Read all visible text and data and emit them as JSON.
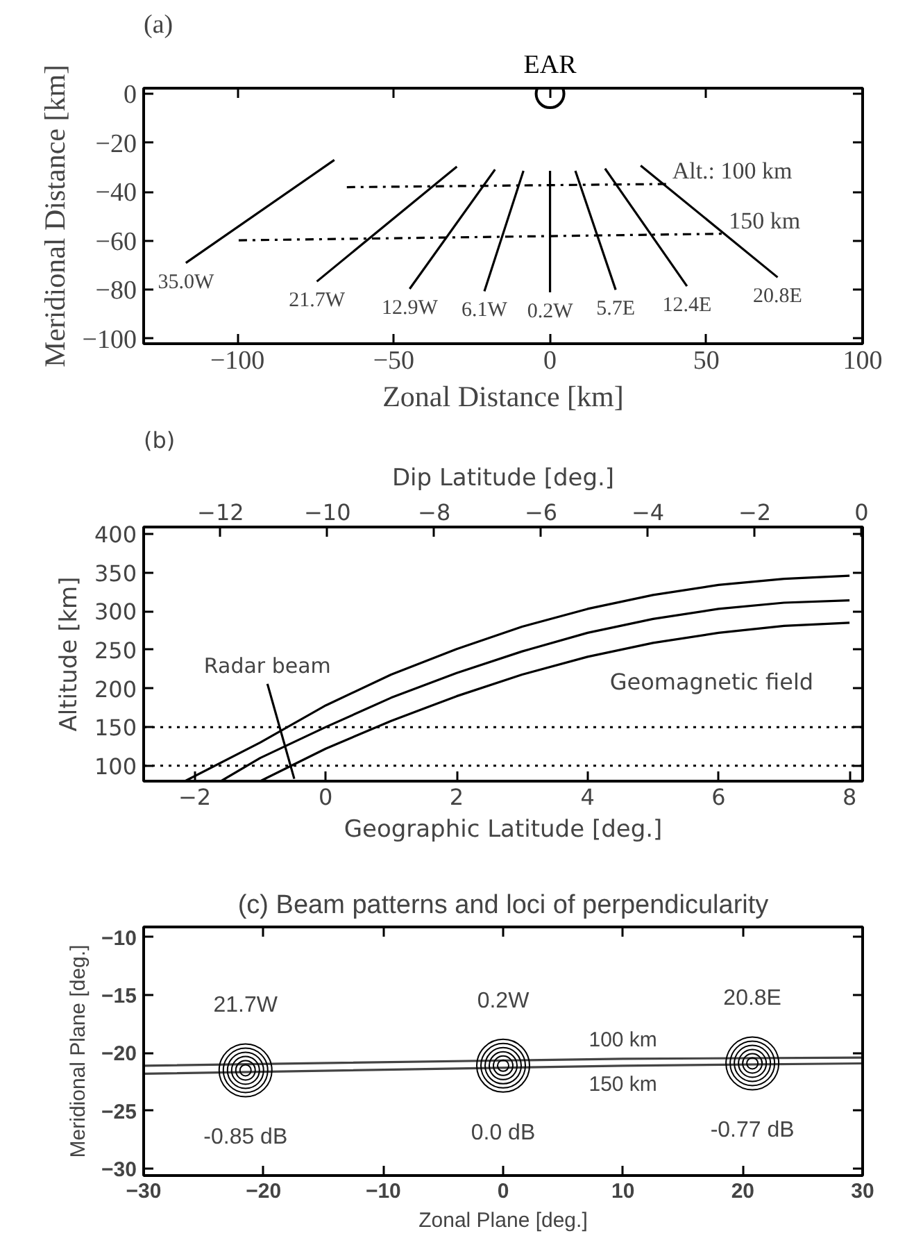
{
  "chart_data": [
    {
      "type": "line",
      "title": "(a)",
      "xlabel": "Zonal Distance [km]",
      "ylabel": "Meridional Distance [km]",
      "xlim": [
        -130,
        100
      ],
      "ylim": [
        -102,
        2.3
      ],
      "xticks": [
        -100,
        -50,
        0,
        50,
        100
      ],
      "yticks": [
        0,
        -20,
        -40,
        -60,
        -80,
        -100
      ],
      "grid": false,
      "series": [
        {
          "name": "35.0W",
          "color": "#000000",
          "x": [
            -116.5,
            -69
          ],
          "values": [
            -69,
            -27
          ]
        },
        {
          "name": "21.7W",
          "color": "#000000",
          "x": [
            -74.6,
            -29.8
          ],
          "values": [
            -76.6,
            -29.7
          ]
        },
        {
          "name": "12.9W",
          "color": "#000000",
          "x": [
            -44.9,
            -17.6
          ],
          "values": [
            -79.6,
            -30.9
          ]
        },
        {
          "name": "6.1W",
          "color": "#000000",
          "x": [
            -21,
            -8.5
          ],
          "values": [
            -80.6,
            -31.4
          ]
        },
        {
          "name": "0.2W",
          "color": "#000000",
          "x": [
            0,
            0
          ],
          "values": [
            -81,
            -31.4
          ]
        },
        {
          "name": "5.7E",
          "color": "#000000",
          "x": [
            21,
            8.1
          ],
          "values": [
            -80,
            -31.4
          ]
        },
        {
          "name": "12.4E",
          "color": "#000000",
          "x": [
            43.8,
            17.6
          ],
          "values": [
            -78.5,
            -30.5
          ]
        },
        {
          "name": "20.8E",
          "color": "#000000",
          "x": [
            72.8,
            29
          ],
          "values": [
            -74.9,
            -29.3
          ]
        },
        {
          "name": "Alt.: 100 km",
          "color": "#000000",
          "line_style": "dashdot",
          "x": [
            -65,
            38.2
          ],
          "values": [
            -38.1,
            -36.8
          ]
        },
        {
          "name": "150 km",
          "color": "#000000",
          "line_style": "dashdot",
          "x": [
            -99.6,
            56.3
          ],
          "values": [
            -59.8,
            -57.1
          ]
        },
        {
          "name": "EAR",
          "type": "scatter",
          "marker": "circle",
          "color": "#000000",
          "x": [
            0
          ],
          "values": [
            0
          ]
        }
      ]
    },
    {
      "type": "line",
      "title": "(b)",
      "xlabel": "Geographic Latitude [deg.]",
      "ylabel": "Altitude [km]",
      "x2label": "Dip Latitude [deg.]",
      "xlim": [
        -2.78,
        8.2
      ],
      "ylim": [
        80,
        409
      ],
      "x2lim": [
        -13.44,
        0.02
      ],
      "xticks": [
        -2,
        0,
        2,
        4,
        6,
        8
      ],
      "yticks": [
        100,
        150,
        200,
        250,
        300,
        350,
        400
      ],
      "x2ticks": [
        -12,
        -10,
        -8,
        -6,
        -4,
        -2,
        0
      ],
      "grid": false,
      "series": [
        {
          "color": "#000000",
          "x": [
            -2.15,
            -1,
            0,
            1,
            2,
            3,
            4,
            5,
            6,
            7,
            8
          ],
          "values": [
            80,
            130,
            178,
            218,
            251,
            280,
            303,
            321,
            334,
            342,
            346
          ]
        },
        {
          "color": "#000000",
          "x": [
            -1.6,
            -1,
            0,
            1,
            2,
            3,
            4,
            5,
            6,
            7,
            8
          ],
          "values": [
            80,
            110,
            150,
            188,
            220,
            248,
            272,
            290,
            303,
            311,
            314
          ]
        },
        {
          "color": "#000000",
          "x": [
            -1,
            0,
            1,
            2,
            3,
            4,
            5,
            6,
            7,
            8
          ],
          "values": [
            80,
            122,
            158,
            190,
            218,
            241,
            259,
            272,
            281,
            285
          ]
        },
        {
          "name": "Radar beam",
          "color": "#000000",
          "x": [
            -0.48,
            -0.89
          ],
          "values": [
            83,
            206
          ]
        }
      ],
      "ref_lines": [
        {
          "axis": "y",
          "value": 150,
          "line_style": "dotted",
          "color": "#000000"
        },
        {
          "axis": "y",
          "value": 100,
          "line_style": "dotted",
          "color": "#000000"
        }
      ],
      "annotations": [
        "Geomagnetic field"
      ]
    },
    {
      "type": "line",
      "title": "(c) Beam patterns and loci of perpendicularity",
      "xlabel": "Zonal Plane [deg.]",
      "ylabel": "Meridional Plane [deg.]",
      "xlim": [
        -30,
        30
      ],
      "ylim": [
        -30.6,
        -9.1
      ],
      "xticks": [
        -30,
        -20,
        -10,
        0,
        10,
        20,
        30
      ],
      "yticks": [
        -10,
        -15,
        -20,
        -25,
        -30
      ],
      "grid": false,
      "series": [
        {
          "name": "100 km",
          "color": "#444444",
          "x": [
            -30,
            10,
            30
          ],
          "values": [
            -21.1,
            -20.5,
            -20.4
          ]
        },
        {
          "name": "150 km",
          "color": "#444444",
          "x": [
            -30,
            10,
            30
          ],
          "values": [
            -21.8,
            -21.1,
            -20.9
          ]
        },
        {
          "name": "21.7W",
          "type": "scatter",
          "marker": "circle",
          "color": "#000000",
          "x": [
            -21.5
          ],
          "values": [
            -21.5
          ]
        },
        {
          "name": "0.2W",
          "type": "scatter",
          "marker": "circle",
          "color": "#000000",
          "x": [
            0
          ],
          "values": [
            -21.1
          ]
        },
        {
          "name": "20.8E",
          "type": "scatter",
          "marker": "circle",
          "color": "#000000",
          "x": [
            20.8
          ],
          "values": [
            -20.9
          ]
        }
      ],
      "annotations": [
        {
          "text": "-0.85 dB",
          "x": -21.5,
          "y": -21.5
        },
        {
          "text": "0.0 dB",
          "x": 0,
          "y": -21.1
        },
        {
          "text": "-0.77 dB",
          "x": 20.8,
          "y": -20.9
        }
      ]
    }
  ]
}
